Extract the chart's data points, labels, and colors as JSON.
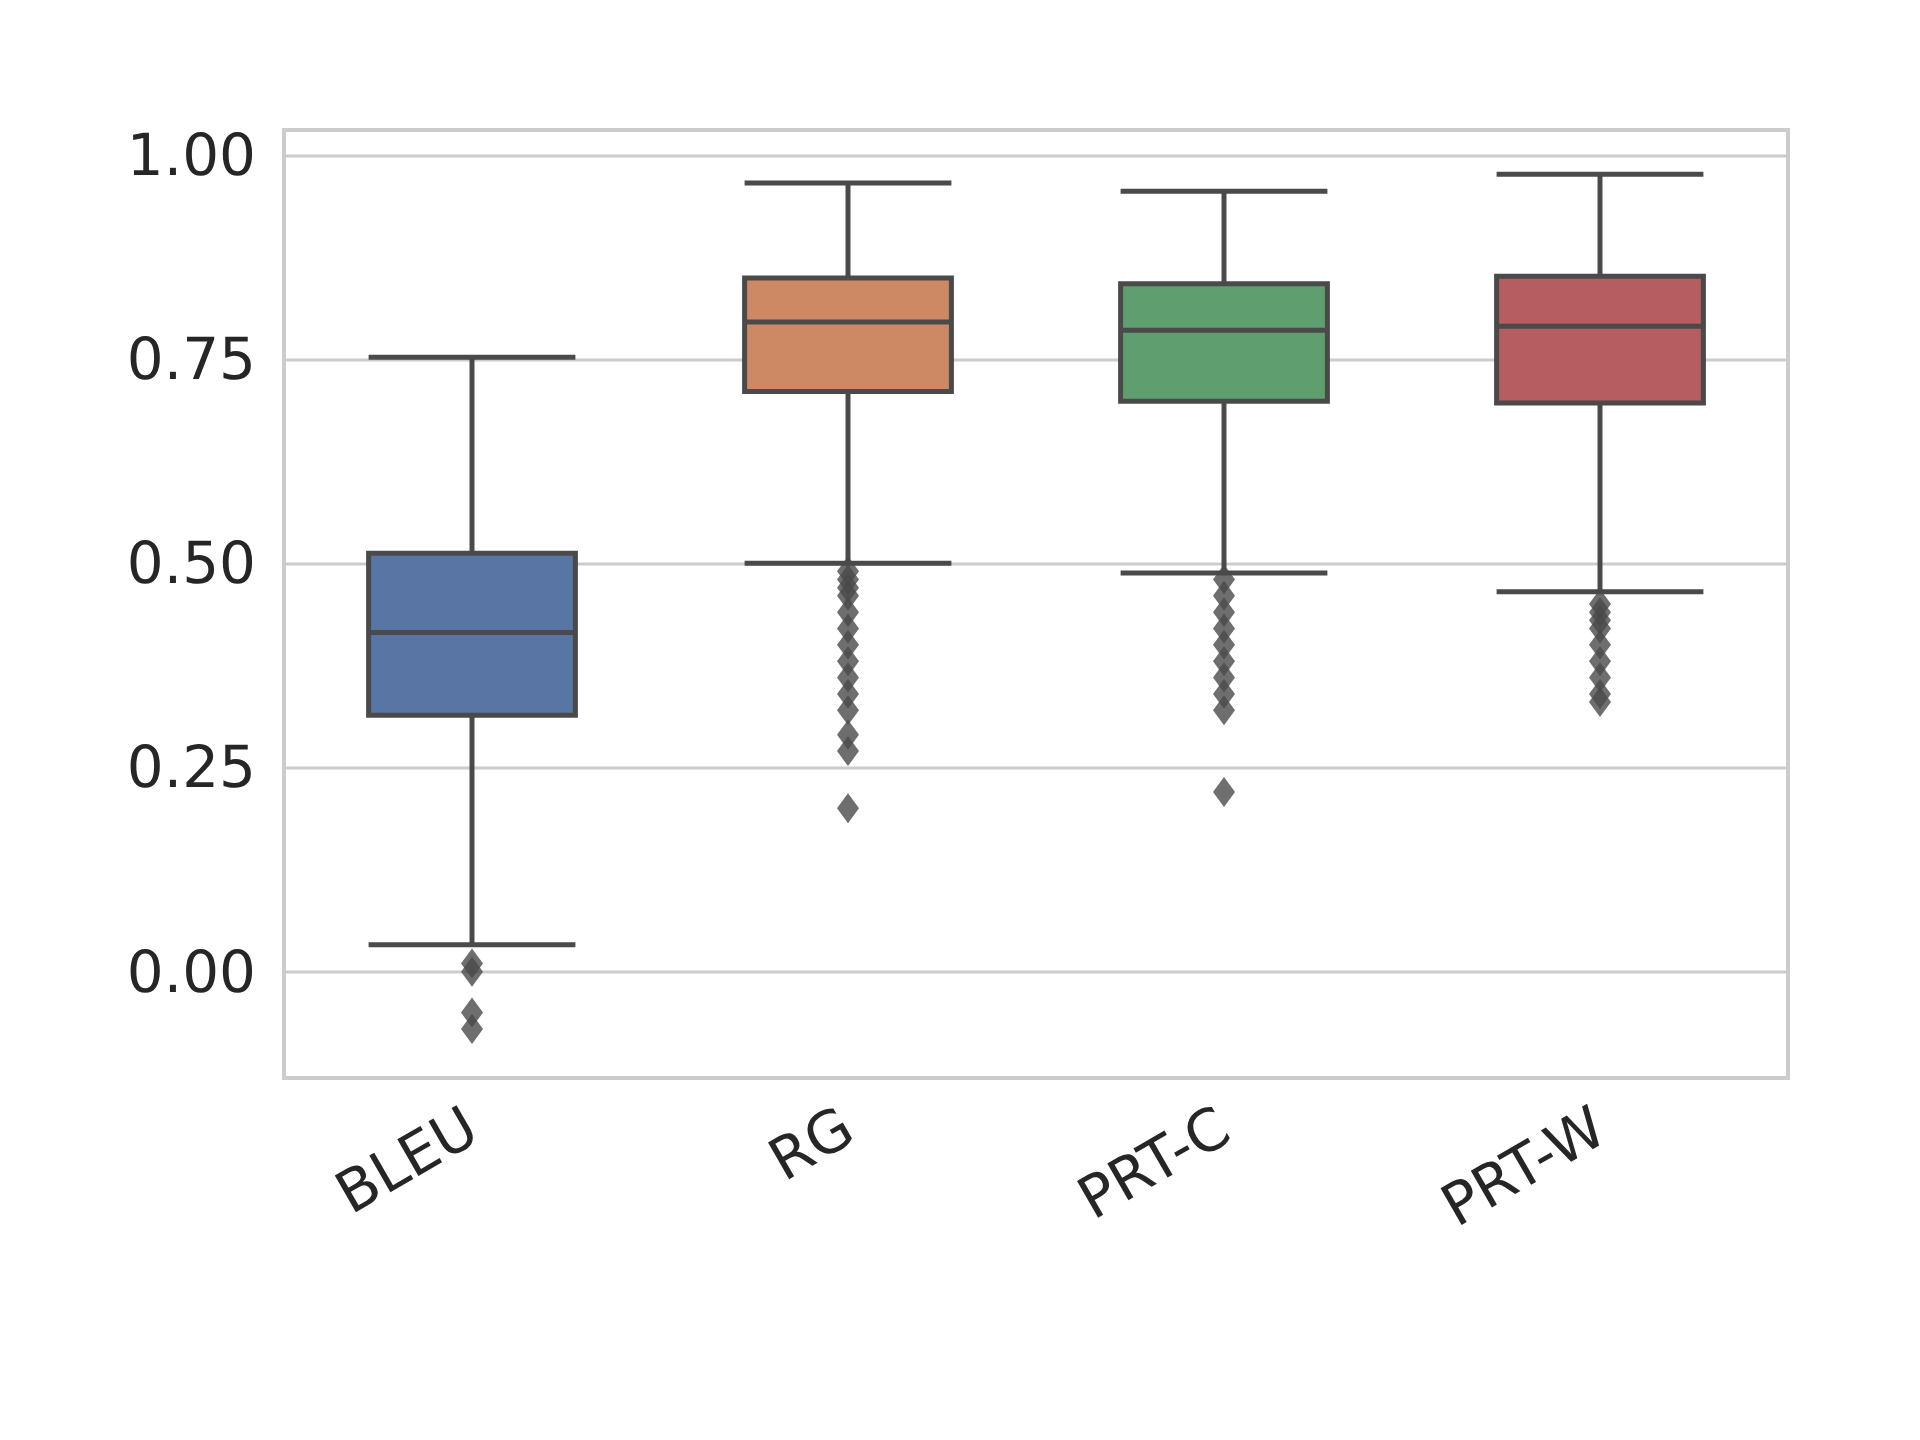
{
  "chart_data": {
    "type": "box",
    "categories": [
      "BLEU",
      "RG",
      "PRT-C",
      "PRT-W"
    ],
    "colors": [
      "#5975a4",
      "#cc8963",
      "#5f9e6e",
      "#b55d60"
    ],
    "boxes": [
      {
        "low": 0.033,
        "q1": 0.314,
        "median": 0.415,
        "q3": 0.512,
        "high": 0.752,
        "outliers": [
          0.01,
          0.0,
          -0.05,
          -0.07
        ]
      },
      {
        "low": 0.5,
        "q1": 0.71,
        "median": 0.795,
        "q3": 0.849,
        "high": 0.965,
        "outliers": [
          0.49,
          0.48,
          0.47,
          0.46,
          0.44,
          0.42,
          0.4,
          0.38,
          0.36,
          0.34,
          0.32,
          0.29,
          0.27,
          0.2
        ]
      },
      {
        "low": 0.488,
        "q1": 0.698,
        "median": 0.785,
        "q3": 0.842,
        "high": 0.955,
        "outliers": [
          0.48,
          0.46,
          0.44,
          0.42,
          0.4,
          0.38,
          0.36,
          0.34,
          0.32,
          0.22
        ]
      },
      {
        "low": 0.465,
        "q1": 0.696,
        "median": 0.79,
        "q3": 0.851,
        "high": 0.976,
        "outliers": [
          0.45,
          0.44,
          0.43,
          0.42,
          0.4,
          0.38,
          0.36,
          0.34,
          0.33
        ]
      }
    ],
    "ylim": [
      -0.13,
      1.03
    ],
    "yticks": [
      {
        "value": 0,
        "label": "0.00"
      },
      {
        "value": 0.25,
        "label": "0.25"
      },
      {
        "value": 0.5,
        "label": "0.50"
      },
      {
        "value": 0.75,
        "label": "0.75"
      },
      {
        "value": 1,
        "label": "1.00"
      }
    ],
    "grid": "y",
    "marker": "diamond"
  }
}
